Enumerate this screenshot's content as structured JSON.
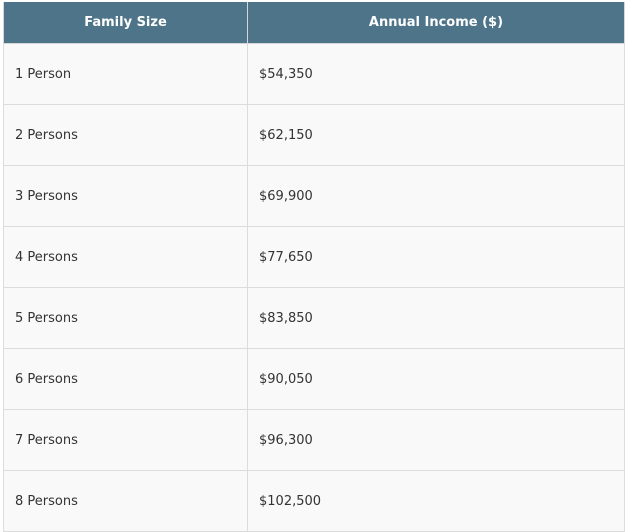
{
  "table": {
    "header": [
      "Family Size",
      "Annual Income ($)"
    ],
    "rows": [
      [
        "1 Person",
        "$54,350"
      ],
      [
        "2 Persons",
        "$62,150"
      ],
      [
        "3 Persons",
        "$69,900"
      ],
      [
        "4 Persons",
        "$77,650"
      ],
      [
        "5 Persons",
        "$83,850"
      ],
      [
        "6 Persons",
        "$90,050"
      ],
      [
        "7 Persons",
        "$96,300"
      ],
      [
        "8 Persons",
        "$102,500"
      ]
    ]
  }
}
